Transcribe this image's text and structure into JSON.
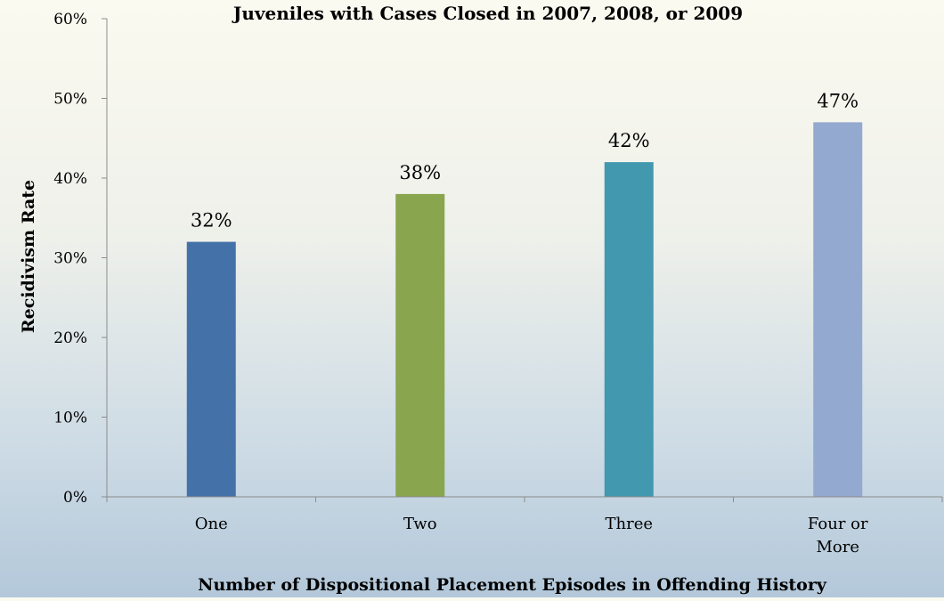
{
  "chart_data": {
    "type": "bar",
    "title": "Juveniles with Cases Closed in 2007, 2008, or 2009",
    "xlabel": "Number of Dispositional Placement Episodes in Offending History",
    "ylabel": "Recidivism Rate",
    "categories": [
      "One",
      "Two",
      "Three",
      "Four or More"
    ],
    "values": [
      32,
      38,
      42,
      47
    ],
    "data_labels": [
      "32%",
      "38%",
      "42%",
      "47%"
    ],
    "ylim": [
      0,
      60
    ],
    "yticks": [
      0,
      10,
      20,
      30,
      40,
      50,
      60
    ],
    "ytick_labels": [
      "0%",
      "10%",
      "20%",
      "30%",
      "40%",
      "50%",
      "60%"
    ],
    "bar_colors": [
      "#4472a8",
      "#89a54e",
      "#4198af",
      "#93a9cf"
    ],
    "grid": false,
    "legend": "none"
  }
}
